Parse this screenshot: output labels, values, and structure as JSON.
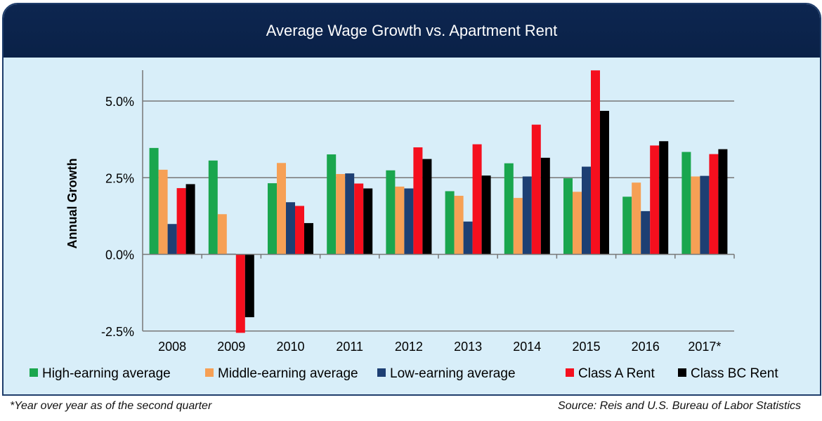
{
  "chart_data": {
    "type": "bar",
    "title": "Average Wage Growth vs. Apartment Rent",
    "ylabel": "Annual Growth",
    "xlabel": "",
    "ylim": [
      -2.5,
      6.0
    ],
    "yticks": [
      -2.5,
      0.0,
      2.5,
      5.0
    ],
    "ytick_labels": [
      "-2.5%",
      "0.0%",
      "2.5%",
      "5.0%"
    ],
    "grid": "horizontal",
    "legend_position": "bottom",
    "categories": [
      "2008",
      "2009",
      "2010",
      "2011",
      "2012",
      "2013",
      "2014",
      "2015",
      "2016",
      "2017*"
    ],
    "series": [
      {
        "name": "High-earning average",
        "color": "#1aa64e",
        "values": [
          3.47,
          3.06,
          2.32,
          3.26,
          2.74,
          2.06,
          2.97,
          2.48,
          1.88,
          3.34
        ]
      },
      {
        "name": "Middle-earning average",
        "color": "#f6a055",
        "values": [
          2.76,
          1.31,
          2.98,
          2.62,
          2.21,
          1.91,
          1.84,
          2.04,
          2.34,
          2.54
        ]
      },
      {
        "name": "Low-earning average",
        "color": "#1d3f73",
        "values": [
          0.99,
          0.02,
          1.7,
          2.64,
          2.15,
          1.07,
          2.54,
          2.86,
          1.41,
          2.56
        ]
      },
      {
        "name": "Class A Rent",
        "color": "#f50f1e",
        "values": [
          2.16,
          -2.56,
          1.58,
          2.31,
          3.49,
          3.59,
          4.23,
          6.0,
          3.55,
          3.27
        ]
      },
      {
        "name": "Class BC Rent",
        "color": "#000000",
        "values": [
          2.29,
          -2.05,
          1.02,
          2.15,
          3.11,
          2.57,
          3.15,
          4.68,
          3.69,
          3.43
        ]
      }
    ]
  },
  "footnote": "*Year over year as of the second quarter",
  "source": "Source: Reis and U.S. Bureau of Labor Statistics"
}
